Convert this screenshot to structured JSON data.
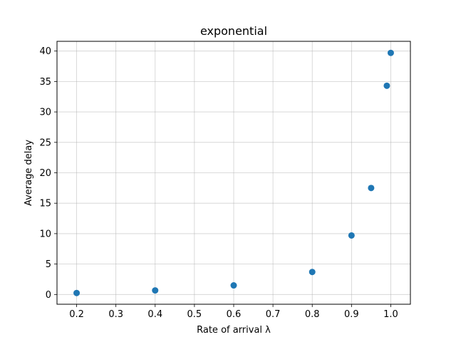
{
  "chart_data": {
    "type": "scatter",
    "title": "exponential",
    "xlabel": "Rate of arrival λ",
    "ylabel": "Average delay",
    "x": [
      0.2,
      0.4,
      0.6,
      0.8,
      0.9,
      0.95,
      0.99,
      1.0
    ],
    "y": [
      0.25,
      0.67,
      1.5,
      3.7,
      9.7,
      17.5,
      34.3,
      39.7
    ],
    "xlim": [
      0.15,
      1.05
    ],
    "ylim": [
      -1.6,
      41.6
    ],
    "xticks": [
      "0.2",
      "0.3",
      "0.4",
      "0.5",
      "0.6",
      "0.7",
      "0.8",
      "0.9",
      "1.0"
    ],
    "yticks": [
      "0",
      "5",
      "10",
      "15",
      "20",
      "25",
      "30",
      "35",
      "40"
    ],
    "grid": true,
    "marker_color": "#1f77b4"
  }
}
